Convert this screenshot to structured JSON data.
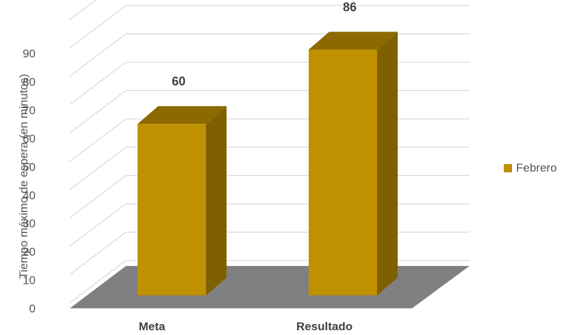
{
  "chart_data": {
    "type": "bar",
    "categories": [
      "Meta",
      "Resultado"
    ],
    "series": [
      {
        "name": "Febrero",
        "values": [
          60,
          86
        ]
      }
    ],
    "data_labels": [
      "60",
      "86"
    ],
    "ylabel": "Tiempo máximo de espera (en minutos)",
    "xlabel": "",
    "ylim": [
      0,
      100
    ],
    "yticks": [
      0,
      10,
      20,
      30,
      40,
      50,
      60,
      70,
      80,
      90
    ],
    "grid": true,
    "legend_position": "right",
    "colors": {
      "bar_front": "#BF9000",
      "bar_side": "#7F6000",
      "bar_top": "#8C6A00",
      "floor": "#808080",
      "gridline": "#D9D9D9"
    }
  }
}
